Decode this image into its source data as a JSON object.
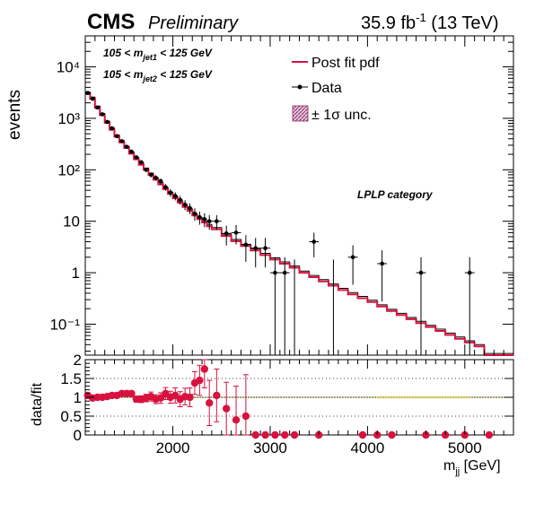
{
  "header": {
    "experiment": "CMS",
    "status": "Preliminary",
    "lumi_prefix": "35.9 fb",
    "lumi_exp": "-1",
    "lumi_suffix": " (13 TeV)"
  },
  "cuts": {
    "cut1": "105 < m",
    "cut1_sub": "jet1",
    "cut1_tail": " < 125 GeV",
    "cut2": "105 < m",
    "cut2_sub": "jet2",
    "cut2_tail": " < 125 GeV"
  },
  "category": "LPLP category",
  "legend": {
    "fit": "Post fit pdf",
    "data": "Data",
    "unc": "± 1σ unc."
  },
  "colors": {
    "fit": "#d8123e",
    "data": "#000000",
    "ratio_points": "#d8123e",
    "band": "#e8d94a"
  },
  "chart_data": [
    {
      "type": "line",
      "panel": "main",
      "xlabel": "m",
      "xlabel_sub": "jj",
      "xlabel_unit": " [GeV]",
      "ylabel": "events",
      "xlim": [
        1100,
        5500
      ],
      "ylim": [
        0.025,
        40000
      ],
      "yscale": "log",
      "ytick_labels": [
        "10⁻¹",
        "1",
        "10",
        "10²",
        "10³",
        "10⁴"
      ],
      "ytick_values": [
        0.1,
        1,
        10,
        100,
        1000,
        10000
      ],
      "bin_edges": [
        1100,
        1150,
        1200,
        1250,
        1300,
        1350,
        1400,
        1450,
        1500,
        1550,
        1600,
        1650,
        1700,
        1750,
        1800,
        1850,
        1900,
        1950,
        2000,
        2050,
        2100,
        2150,
        2200,
        2250,
        2300,
        2350,
        2400,
        2500,
        2600,
        2700,
        2800,
        2900,
        3000,
        3100,
        3200,
        3300,
        3400,
        3500,
        3600,
        3700,
        3800,
        3900,
        4000,
        4100,
        4200,
        4300,
        4400,
        4500,
        4600,
        4700,
        4800,
        4900,
        5000,
        5100,
        5200,
        5500
      ],
      "series": [
        {
          "name": "Post fit pdf",
          "style": "step",
          "values": [
            3000,
            2400,
            1600,
            1150,
            820,
            600,
            440,
            340,
            265,
            205,
            160,
            125,
            100,
            80,
            64,
            52,
            42,
            34,
            28,
            23,
            19,
            16,
            13,
            11,
            9.5,
            8,
            7,
            5.2,
            4.1,
            3.3,
            2.7,
            2.2,
            1.8,
            1.5,
            1.25,
            1.0,
            0.82,
            0.68,
            0.56,
            0.46,
            0.38,
            0.32,
            0.27,
            0.22,
            0.18,
            0.15,
            0.125,
            0.105,
            0.088,
            0.074,
            0.062,
            0.052,
            0.044,
            0.037,
            0.025
          ]
        },
        {
          "name": "Data",
          "style": "points",
          "x": [
            1125,
            1175,
            1225,
            1275,
            1325,
            1375,
            1425,
            1475,
            1525,
            1575,
            1625,
            1675,
            1725,
            1775,
            1825,
            1875,
            1925,
            1975,
            2025,
            2075,
            2125,
            2175,
            2225,
            2275,
            2325,
            2375,
            2450,
            2550,
            2650,
            2750,
            2850,
            2950,
            3050,
            3150,
            3250,
            3450,
            3650,
            3850,
            4150,
            4550,
            5050
          ],
          "y": [
            3100,
            2400,
            1620,
            1200,
            850,
            640,
            450,
            360,
            280,
            225,
            175,
            140,
            100,
            80,
            70,
            60,
            46,
            36,
            31,
            26,
            21,
            18,
            14,
            12,
            11,
            10,
            10,
            5.8,
            6,
            3.5,
            3,
            3,
            1,
            1,
            0,
            4,
            0,
            2,
            1.5,
            1,
            1
          ]
        }
      ]
    },
    {
      "type": "scatter",
      "panel": "ratio",
      "ylabel": "data/fit",
      "ylim": [
        0,
        2
      ],
      "ytick_labels": [
        "0",
        "0.5",
        "1",
        "1.5",
        "2"
      ],
      "xlim": [
        1100,
        5500
      ],
      "xtick_labels": [
        "2000",
        "3000",
        "4000",
        "5000"
      ],
      "xtick_values": [
        2000,
        3000,
        4000,
        5000
      ],
      "series": [
        {
          "name": "data/fit",
          "x": [
            1125,
            1175,
            1225,
            1275,
            1325,
            1375,
            1425,
            1475,
            1525,
            1575,
            1625,
            1675,
            1725,
            1775,
            1825,
            1875,
            1925,
            1975,
            2025,
            2075,
            2125,
            2175,
            2225,
            2275,
            2325,
            2375,
            2450,
            2550,
            2650,
            2750,
            2850,
            2950,
            3050,
            3150,
            3250,
            3500,
            3950,
            4100,
            4250,
            4600,
            4800,
            5000,
            5250
          ],
          "y": [
            1.05,
            0.98,
            1.0,
            1.0,
            1.02,
            1.05,
            1.05,
            1.1,
            1.1,
            1.1,
            0.95,
            0.95,
            0.98,
            1.02,
            0.95,
            0.98,
            1.1,
            1.0,
            1.05,
            0.95,
            1.02,
            1.0,
            1.38,
            1.45,
            1.75,
            0.85,
            1.05,
            0.7,
            0.4,
            0.5,
            0.0,
            0.0,
            0.0,
            0.0,
            0.0,
            0.0,
            0.0,
            0.0,
            0.0,
            0.0,
            0.0,
            0.0,
            0.0
          ],
          "err": [
            0.04,
            0.04,
            0.04,
            0.04,
            0.04,
            0.05,
            0.05,
            0.06,
            0.07,
            0.07,
            0.08,
            0.09,
            0.1,
            0.12,
            0.12,
            0.14,
            0.16,
            0.16,
            0.2,
            0.2,
            0.22,
            0.25,
            0.3,
            0.4,
            0.5,
            0.6,
            0.7,
            0.7,
            0.9,
            1.1,
            0,
            0,
            0,
            0,
            0,
            0,
            0,
            0,
            0,
            0,
            0,
            0,
            0
          ]
        }
      ]
    }
  ]
}
